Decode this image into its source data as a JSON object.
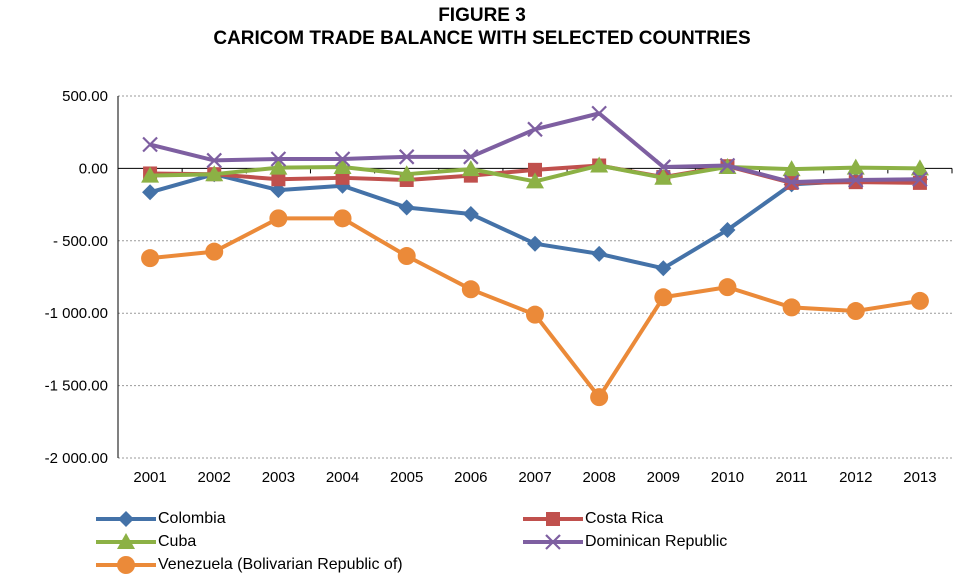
{
  "chart_data": {
    "type": "line",
    "title": "FIGURE 3",
    "subtitle": "CARICOM TRADE BALANCE WITH SELECTED COUNTRIES",
    "xlabel": "",
    "ylabel": "",
    "categories": [
      "2001",
      "2002",
      "2003",
      "2004",
      "2005",
      "2006",
      "2007",
      "2008",
      "2009",
      "2010",
      "2011",
      "2012",
      "2013"
    ],
    "ylim": [
      -2000,
      500
    ],
    "yticks": [
      500,
      0,
      -500,
      -1000,
      -1500,
      -2000
    ],
    "ytick_labels": [
      "500.00",
      "0.00",
      "- 500.00",
      "-1 000.00",
      "-1 500.00",
      "-2 000.00"
    ],
    "grid": "horizontal",
    "legend_position": "bottom",
    "series": [
      {
        "name": "Colombia",
        "color": "#4472A8",
        "marker": "diamond",
        "values": [
          -165,
          -40,
          -150,
          -120,
          -270,
          -315,
          -520,
          -590,
          -690,
          -425,
          -110,
          -85,
          -75
        ]
      },
      {
        "name": "Costa Rica",
        "color": "#C0504D",
        "marker": "square",
        "values": [
          -35,
          -40,
          -75,
          -65,
          -80,
          -50,
          -10,
          20,
          -60,
          15,
          -100,
          -95,
          -100
        ]
      },
      {
        "name": "Cuba",
        "color": "#8CB145",
        "marker": "triangle",
        "values": [
          -50,
          -40,
          5,
          10,
          -40,
          -5,
          -90,
          20,
          -65,
          10,
          -5,
          5,
          0
        ]
      },
      {
        "name": "Dominican Republic",
        "color": "#7E5FA1",
        "marker": "x",
        "values": [
          165,
          55,
          65,
          65,
          80,
          80,
          270,
          380,
          10,
          20,
          -95,
          -80,
          -75
        ]
      },
      {
        "name": "Venezuela (Bolivarian Republic of)",
        "color": "#EB8A39",
        "marker": "circle",
        "values": [
          -620,
          -575,
          -345,
          -345,
          -605,
          -835,
          -1010,
          -1580,
          -890,
          -820,
          -960,
          -985,
          -915
        ]
      }
    ]
  }
}
